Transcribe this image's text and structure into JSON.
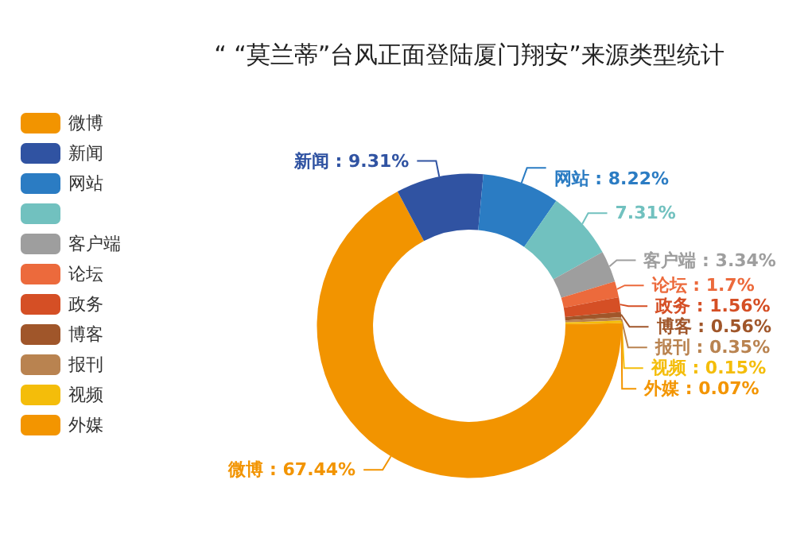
{
  "chart_data": {
    "type": "donut",
    "title": "“ “莫兰蒂”台风正面登陆厦门翔安”来源类型统计",
    "categories": [
      "微博",
      "新闻",
      "网站",
      null,
      "客户端",
      "论坛",
      "政务",
      "博客",
      "报刊",
      "视频",
      "外媒"
    ],
    "values": [
      67.44,
      9.31,
      8.22,
      7.31,
      3.34,
      1.7,
      1.56,
      0.56,
      0.35,
      0.15,
      0.07
    ],
    "colors": [
      "#f29400",
      "#3053a2",
      "#2b7cc3",
      "#71c1bf",
      "#9e9e9e",
      "#ec6a3c",
      "#d54f25",
      "#a0562a",
      "#b98350",
      "#f4bd0a",
      "#f39500"
    ],
    "value_labels": [
      "微博 : 67.44%",
      "新闻 : 9.31%",
      "网站 : 8.22%",
      "7.31%",
      "客户端 : 3.34%",
      "论坛 : 1.7%",
      "政务 : 1.56%",
      "博客 : 0.56%",
      "报刊 : 0.35%",
      "视频 : 0.15%",
      "外媒 : 0.07%"
    ],
    "legend": "left"
  }
}
